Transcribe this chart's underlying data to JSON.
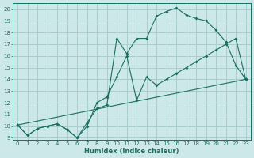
{
  "xlabel": "Humidex (Indice chaleur)",
  "bg_color": "#cce8e8",
  "grid_color": "#aacccc",
  "line_color": "#1a7060",
  "xlim": [
    -0.5,
    23.5
  ],
  "ylim": [
    8.85,
    20.5
  ],
  "yticks": [
    9,
    10,
    11,
    12,
    13,
    14,
    15,
    16,
    17,
    18,
    19,
    20
  ],
  "xticks": [
    0,
    1,
    2,
    3,
    4,
    5,
    6,
    7,
    8,
    9,
    10,
    11,
    12,
    13,
    14,
    15,
    16,
    17,
    18,
    19,
    20,
    21,
    22,
    23
  ],
  "line1_x": [
    0,
    1,
    2,
    3,
    4,
    5,
    6,
    7,
    8,
    9,
    10,
    11,
    12,
    13,
    14,
    15,
    16,
    17,
    18,
    19,
    20,
    21,
    22,
    23
  ],
  "line1_y": [
    10.1,
    9.2,
    9.8,
    10.0,
    10.2,
    9.7,
    9.0,
    10.3,
    11.5,
    11.8,
    17.5,
    16.2,
    17.5,
    17.5,
    19.4,
    19.8,
    20.1,
    19.5,
    19.2,
    19.0,
    18.2,
    17.2,
    15.2,
    14.0
  ],
  "line2_x": [
    0,
    1,
    2,
    3,
    4,
    5,
    6,
    7,
    8,
    9,
    10,
    11,
    12,
    13,
    14,
    15,
    16,
    17,
    18,
    19,
    20,
    21,
    22,
    23
  ],
  "line2_y": [
    10.1,
    9.2,
    9.8,
    10.0,
    10.2,
    9.7,
    9.0,
    10.0,
    12.0,
    12.5,
    14.2,
    16.0,
    12.2,
    14.2,
    13.5,
    14.0,
    14.5,
    15.0,
    15.5,
    16.0,
    16.5,
    17.0,
    17.5,
    14.0
  ],
  "line3_x": [
    0,
    23
  ],
  "line3_y": [
    10.1,
    14.0
  ]
}
